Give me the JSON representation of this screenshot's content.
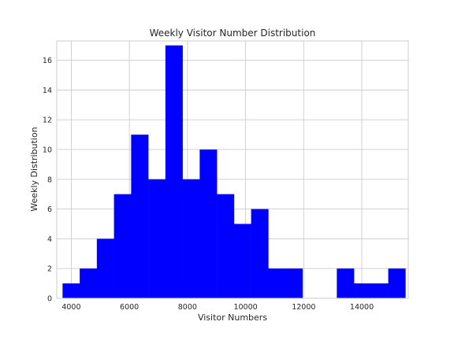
{
  "chart_data": {
    "type": "bar",
    "title": "Weekly Visitor Number Distribution",
    "xlabel": "Visitor Numbers",
    "ylabel": "Weekly Distribution",
    "xlim": [
      3500,
      15600
    ],
    "ylim": [
      0,
      17.3
    ],
    "xticks": [
      4000,
      6000,
      8000,
      10000,
      12000,
      14000
    ],
    "yticks": [
      0,
      2,
      4,
      6,
      8,
      10,
      12,
      14,
      16
    ],
    "grid": true,
    "bar_color": "#0000ff",
    "bin_edges": [
      3700,
      4290,
      4880,
      5470,
      6060,
      6650,
      7240,
      7830,
      8420,
      9010,
      9600,
      10190,
      10780,
      11370,
      11960,
      12550,
      13140,
      13730,
      14320,
      14910,
      15500
    ],
    "counts": [
      1,
      2,
      4,
      7,
      11,
      8,
      17,
      8,
      10,
      7,
      5,
      6,
      2,
      2,
      0,
      0,
      2,
      1,
      1,
      2
    ]
  }
}
